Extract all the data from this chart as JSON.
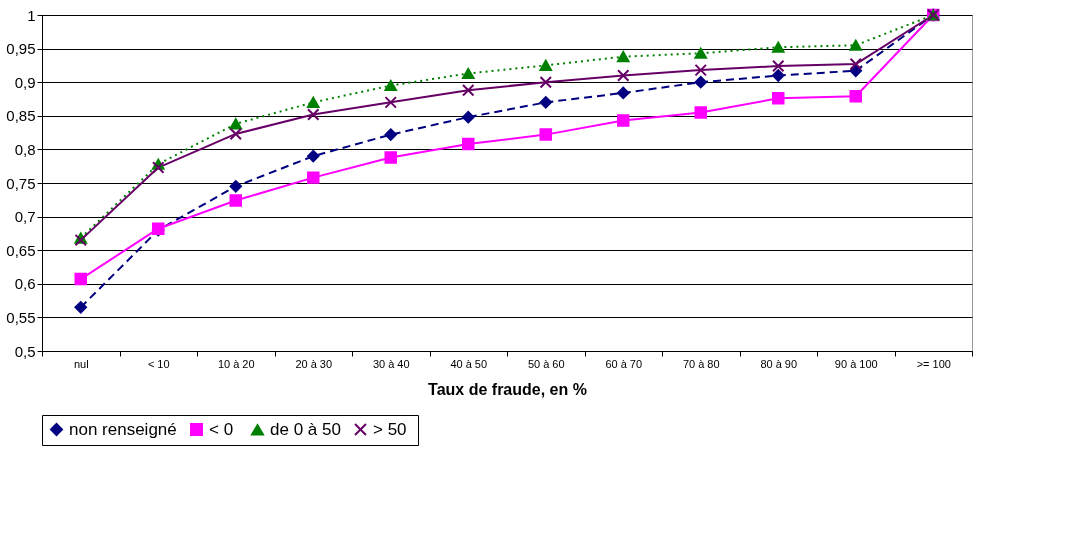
{
  "chart_data": {
    "type": "line",
    "xlabel": "Taux de fraude, en %",
    "categories": [
      "nul",
      "< 10",
      "10 à 20",
      "20 à 30",
      "30 à 40",
      "40 à 50",
      "50 à 60",
      "60 à 70",
      "70 à 80",
      "80 à 90",
      "90 à 100",
      ">= 100"
    ],
    "series": [
      {
        "name": "non renseigné",
        "color": "#000080",
        "marker": "diamond",
        "line_style": "dashed",
        "values": [
          0.565,
          0.68,
          0.745,
          0.79,
          0.822,
          0.848,
          0.87,
          0.884,
          0.9,
          0.91,
          0.917,
          1
        ]
      },
      {
        "name": "<  0",
        "color": "#ff00ff",
        "marker": "square",
        "line_style": "solid",
        "values": [
          0.607,
          0.682,
          0.724,
          0.758,
          0.788,
          0.808,
          0.822,
          0.843,
          0.855,
          0.876,
          0.879,
          1
        ]
      },
      {
        "name": "de 0 à 50",
        "color": "#008000",
        "marker": "triangle",
        "line_style": "dotted",
        "values": [
          0.668,
          0.778,
          0.838,
          0.87,
          0.895,
          0.913,
          0.925,
          0.938,
          0.943,
          0.952,
          0.955,
          1
        ]
      },
      {
        "name": ">  50",
        "color": "#660066",
        "marker": "cross",
        "line_style": "solid",
        "values": [
          0.665,
          0.773,
          0.823,
          0.852,
          0.87,
          0.888,
          0.9,
          0.91,
          0.918,
          0.924,
          0.927,
          1
        ]
      }
    ],
    "ylim": [
      0.5,
      1
    ],
    "yticks": [
      {
        "value": 0.5,
        "label": "0,5"
      },
      {
        "value": 0.55,
        "label": "0,55"
      },
      {
        "value": 0.6,
        "label": "0,6"
      },
      {
        "value": 0.65,
        "label": "0,65"
      },
      {
        "value": 0.7,
        "label": "0,7"
      },
      {
        "value": 0.75,
        "label": "0,75"
      },
      {
        "value": 0.8,
        "label": "0,8"
      },
      {
        "value": 0.85,
        "label": "0,85"
      },
      {
        "value": 0.9,
        "label": "0,9"
      },
      {
        "value": 0.95,
        "label": "0,95"
      },
      {
        "value": 1,
        "label": "1"
      }
    ],
    "grid": "y",
    "legend": "bottom"
  }
}
